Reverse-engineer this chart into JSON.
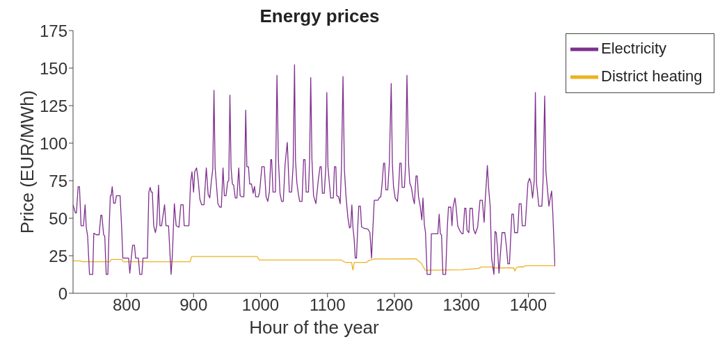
{
  "chart_data": {
    "type": "line",
    "title": "Energy prices",
    "xlabel": "Hour of the year",
    "ylabel": "Price (EUR/MWh)",
    "xlim": [
      720,
      1440
    ],
    "xticks": [
      800,
      900,
      1000,
      1100,
      1200,
      1300,
      1400
    ],
    "ylim": [
      0,
      175
    ],
    "yticks": [
      0,
      25,
      50,
      75,
      100,
      125,
      150,
      175
    ],
    "grid": false,
    "legend": "top right",
    "line_style": "solid",
    "marker": "none",
    "series": [
      {
        "name": "Electricity",
        "color": "#7e2f8e",
        "x": [
          720,
          723.5,
          725,
          727.6,
          729.6,
          732,
          735.6,
          738,
          739.7,
          741.8,
          744.6,
          749.4,
          751,
          754.6,
          759,
          761.5,
          763,
          765.7,
          767.4,
          769.5,
          772,
          773.6,
          775.7,
          777,
          778.5,
          780.6,
          783,
          784.8,
          790.3,
          792.7,
          794.4,
          803,
          804.8,
          806.9,
          809,
          811.7,
          813.5,
          817.6,
          819.6,
          822.8,
          824.5,
          831,
          833.2,
          835.3,
          836.7,
          838.4,
          840.5,
          843,
          845,
          847.7,
          849.8,
          852.2,
          856.7,
          858.8,
          862.6,
          864.7,
          866.4,
          868.1,
          871.3,
          874,
          878.2,
          881,
          884.4,
          886,
          893,
          895.5,
          897.6,
          900,
          901.7,
          904.5,
          907,
          909.4,
          912,
          915.6,
          919,
          921.8,
          924.2,
          926.6,
          928.7,
          930.5,
          932.2,
          934,
          936.3,
          939.1,
          941.5,
          944,
          946,
          948.5,
          950.9,
          952.6,
          954.3,
          956,
          958,
          959.9,
          962.3,
          964.7,
          967.5,
          969.6,
          971.6,
          975.1,
          976.5,
          977.9,
          979.6,
          982,
          983.8,
          986.5,
          989,
          991,
          992.8,
          996.9,
          998.6,
          1002,
          1005.6,
          1008.3,
          1010.8,
          1013.2,
          1015.3,
          1016.6,
          1018.7,
          1022.2,
          1024.6,
          1026.7,
          1029.1,
          1031.5,
          1034,
          1036.7,
          1040,
          1043,
          1046.4,
          1048.8,
          1050.8,
          1052.2,
          1054.3,
          1056.7,
          1058.5,
          1062,
          1064.3,
          1066.4,
          1068.2,
          1071.6,
          1073.3,
          1075,
          1076.8,
          1079.2,
          1082.7,
          1086.2,
          1088.9,
          1090.7,
          1092.4,
          1095.2,
          1097.6,
          1099,
          1100.7,
          1102.8,
          1104.8,
          1108.7,
          1110.4,
          1112.5,
          1113.8,
          1116.6,
          1119,
          1120.8,
          1123.2,
          1125.3,
          1127.7,
          1130.5,
          1132.9,
          1134.6,
          1136.4,
          1138.1,
          1139.8,
          1141.5,
          1143.3,
          1145,
          1146.7,
          1149.2,
          1150.9,
          1153.7,
          1160.6,
          1163.4,
          1165.8,
          1167.5,
          1169.9,
          1175.5,
          1177.2,
          1179.6,
          1181.4,
          1183.8,
          1185.5,
          1187.2,
          1190,
          1192.4,
          1195.2,
          1196.9,
          1198.6,
          1201.1,
          1204.5,
          1206.6,
          1208,
          1210,
          1211.5,
          1215,
          1216.6,
          1218.7,
          1221.2,
          1222.9,
          1225.3,
          1228.1,
          1229.8,
          1232.2,
          1234,
          1236,
          1238.5,
          1240.9,
          1242.6,
          1244.7,
          1246.4,
          1248.8,
          1254,
          1255.1,
          1259.9,
          1264.8,
          1266.8,
          1268.6,
          1270.3,
          1272.4,
          1276.5,
          1279,
          1280.7,
          1284.2,
          1285.9,
          1287.6,
          1290.4,
          1292.1,
          1294.5,
          1297.3,
          1300.8,
          1302.5,
          1304.9,
          1306.7,
          1308.4,
          1311.2,
          1312.9,
          1316.4,
          1318.1,
          1320.8,
          1324.3,
          1327.8,
          1331.2,
          1334,
          1335.4,
          1338.8,
          1340.6,
          1343,
          1345.1,
          1348.6,
          1350.3,
          1352,
          1353.8,
          1356.2,
          1359,
          1360.7,
          1364.9,
          1367.3,
          1369.4,
          1371.8,
          1375.3,
          1377.7,
          1379.5,
          1384,
          1386.4,
          1389.2,
          1390.9,
          1395.4,
          1399.4,
          1401.8,
          1403.9,
          1406.3,
          1408.8,
          1410.5,
          1412.2,
          1415.7,
          1420.2,
          1421.9,
          1424.4,
          1426.2,
          1428.9,
          1430.7,
          1433.1,
          1434.8,
          1436.6,
          1439.7
        ],
        "values": [
          58.9,
          53.5,
          53.5,
          71,
          71,
          45,
          45,
          59,
          44,
          38,
          12.6,
          12.6,
          40,
          39,
          39,
          52,
          52,
          39,
          38,
          12.6,
          12.6,
          39,
          65,
          65,
          71,
          60,
          60,
          65,
          65,
          42.7,
          23.4,
          23.4,
          13.4,
          23.4,
          32,
          32,
          23.4,
          23.4,
          12.6,
          12.6,
          23.4,
          23.4,
          67.4,
          70.5,
          67.4,
          67.4,
          45,
          40.4,
          45,
          72,
          45,
          45,
          59,
          45,
          45,
          27.3,
          12.6,
          23.4,
          59.7,
          45,
          44,
          59,
          59,
          45,
          45,
          73.5,
          81,
          67.4,
          81,
          83.5,
          75,
          62.7,
          59,
          59,
          83.5,
          65.8,
          63.5,
          75,
          82.8,
          135.2,
          83.5,
          73.5,
          59.7,
          57.4,
          57.4,
          83.5,
          65,
          65,
          74.3,
          75,
          132,
          83.5,
          72.8,
          72,
          63.5,
          63.5,
          83.5,
          65,
          64.3,
          64.3,
          84.3,
          122,
          84.3,
          84.3,
          72.8,
          72.8,
          66.6,
          71.2,
          64.3,
          64.3,
          67.4,
          84.3,
          84.3,
          64.3,
          61.2,
          67.4,
          89,
          89,
          67.4,
          67.4,
          145.2,
          89,
          66.6,
          61.2,
          61.2,
          85.9,
          100.5,
          67.4,
          67.4,
          86,
          152.2,
          89,
          73.5,
          65.8,
          61.2,
          61.2,
          89,
          89,
          67.4,
          67.4,
          89,
          143.7,
          89,
          65,
          59.7,
          75,
          84.3,
          84.3,
          66.6,
          66.6,
          84.3,
          133.7,
          84.3,
          73.5,
          63.5,
          63.5,
          84.3,
          84.3,
          65,
          64.3,
          59.7,
          82.8,
          144.4,
          82,
          64.3,
          50.4,
          43.5,
          44.2,
          58.9,
          43.5,
          36.5,
          23.4,
          23.4,
          42,
          58,
          58,
          44.2,
          43.5,
          42.7,
          40.4,
          23.4,
          40.4,
          62,
          62,
          63.5,
          64.3,
          72,
          86.6,
          86.6,
          68.9,
          68.9,
          86.6,
          139.8,
          86.6,
          71.2,
          63.5,
          61.2,
          73.5,
          86.6,
          86.6,
          70.5,
          70.5,
          85.9,
          145.2,
          85.9,
          73.5,
          70.5,
          62.7,
          59.7,
          78.2,
          78.2,
          64.3,
          58,
          48.9,
          63.5,
          45.8,
          40.4,
          12.6,
          12.6,
          39.6,
          39.6,
          39.6,
          52.7,
          39.6,
          38.9,
          12.6,
          12.6,
          44.2,
          57.4,
          57.4,
          45,
          57.4,
          63.5,
          57.4,
          45,
          42,
          39.6,
          39.6,
          56.6,
          56.6,
          42,
          40.4,
          56.6,
          56.6,
          42.7,
          39.6,
          44.2,
          62,
          62,
          47.3,
          60.4,
          85.1,
          70.5,
          58,
          23.4,
          12.6,
          41.2,
          40.4,
          30.4,
          13.4,
          30.4,
          40.4,
          40.4,
          31,
          19.6,
          19.6,
          52.7,
          52.7,
          40.4,
          40.4,
          59.7,
          59.7,
          45,
          45,
          73.5,
          76.6,
          73.5,
          63.5,
          75,
          133.7,
          73.5,
          58,
          58,
          74.3,
          131.4,
          81.3,
          67.4,
          58,
          64.3,
          68.1,
          52.7,
          18
        ]
      },
      {
        "name": "District heating",
        "color": "#edb120",
        "x": [
          720,
          730,
          735,
          775,
          777,
          793,
          795,
          895,
          897,
          995,
          998,
          1120,
          1127,
          1136,
          1138,
          1140,
          1145,
          1158,
          1162,
          1170,
          1185,
          1232,
          1240,
          1246,
          1248,
          1300,
          1325,
          1330,
          1345,
          1347,
          1378,
          1380,
          1382,
          1385,
          1393,
          1395,
          1440
        ],
        "values": [
          21.6,
          21.6,
          21,
          21,
          22.5,
          22.5,
          21,
          21,
          24.5,
          24.5,
          22.2,
          22.2,
          20.5,
          20.5,
          15.5,
          20.5,
          20.5,
          20.5,
          21.8,
          22.9,
          22.9,
          23,
          20,
          15.3,
          15.3,
          15.7,
          16.5,
          17.5,
          17.5,
          16.9,
          17,
          14.8,
          17,
          17.6,
          17.6,
          18.3,
          18.3
        ]
      }
    ]
  }
}
